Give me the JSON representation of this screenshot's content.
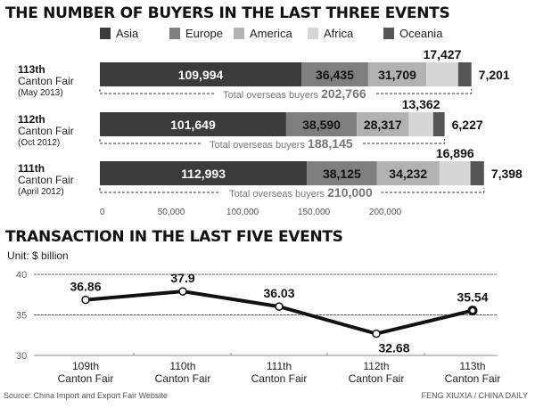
{
  "chart_data": [
    {
      "type": "bar",
      "stacked": true,
      "orientation": "horizontal",
      "title": "THE NUMBER OF BUYERS IN THE LAST THREE EVENTS",
      "legend_position": "top",
      "categories": [
        {
          "name": "113th",
          "line2": "Canton Fair",
          "date": "(May 2013)",
          "total_label": "Total overseas buyers",
          "total": "202,766"
        },
        {
          "name": "112th",
          "line2": "Canton Fair",
          "date": "(Oct 2012)",
          "total_label": "Total overseas buyers",
          "total": "188,145"
        },
        {
          "name": "111th",
          "line2": "Canton Fair",
          "date": "(April 2012)",
          "total_label": "Total overseas buyers",
          "total": "210,000"
        }
      ],
      "series": [
        {
          "name": "Asia",
          "color": "#3b3b3b",
          "values": [
            109994,
            101649,
            112993
          ],
          "labels": [
            "109,994",
            "101,649",
            "112,993"
          ]
        },
        {
          "name": "Europe",
          "color": "#7f7f7f",
          "values": [
            36435,
            38590,
            38125
          ],
          "labels": [
            "36,435",
            "38,590",
            "38,125"
          ]
        },
        {
          "name": "America",
          "color": "#b2b2b2",
          "values": [
            31709,
            28317,
            34232
          ],
          "labels": [
            "31,709",
            "28,317",
            "34,232"
          ]
        },
        {
          "name": "Africa",
          "color": "#d6d6d6",
          "values": [
            17427,
            13362,
            16896
          ],
          "labels": [
            "17,427",
            "13,362",
            "16,896"
          ]
        },
        {
          "name": "Oceania",
          "color": "#555555",
          "values": [
            7201,
            6227,
            7398
          ],
          "labels": [
            "7,201",
            "6,227",
            "7,398"
          ]
        }
      ],
      "x_ticks": [
        {
          "value": 0,
          "label": "0"
        },
        {
          "value": 50000,
          "label": "50,000"
        },
        {
          "value": 100000,
          "label": "100,000"
        },
        {
          "value": 150000,
          "label": "150,000"
        },
        {
          "value": 200000,
          "label": "200,000"
        }
      ]
    },
    {
      "type": "line",
      "title": "TRANSACTION IN THE LAST FIVE EVENTS",
      "unit": "Unit: $ billion",
      "ylim": [
        30,
        40
      ],
      "grid": true,
      "y_ticks": [
        {
          "value": 40,
          "label": "40"
        },
        {
          "value": 35,
          "label": "35"
        },
        {
          "value": 30,
          "label": "30"
        }
      ],
      "categories": [
        [
          "109th",
          "Canton Fair"
        ],
        [
          "110th",
          "Canton Fair"
        ],
        [
          "111th",
          "Canton Fair"
        ],
        [
          "112th",
          "Canton Fair"
        ],
        [
          "113th",
          "Canton Fair"
        ]
      ],
      "values": [
        36.86,
        37.9,
        36.03,
        32.68,
        35.54
      ],
      "labels": [
        "36.86",
        "37.9",
        "36.03",
        "32.68",
        "35.54"
      ]
    }
  ],
  "footer": {
    "source": "Source: China Import and Export Fair Website",
    "credit": "FENG XIUXIA / CHINA DAILY"
  }
}
